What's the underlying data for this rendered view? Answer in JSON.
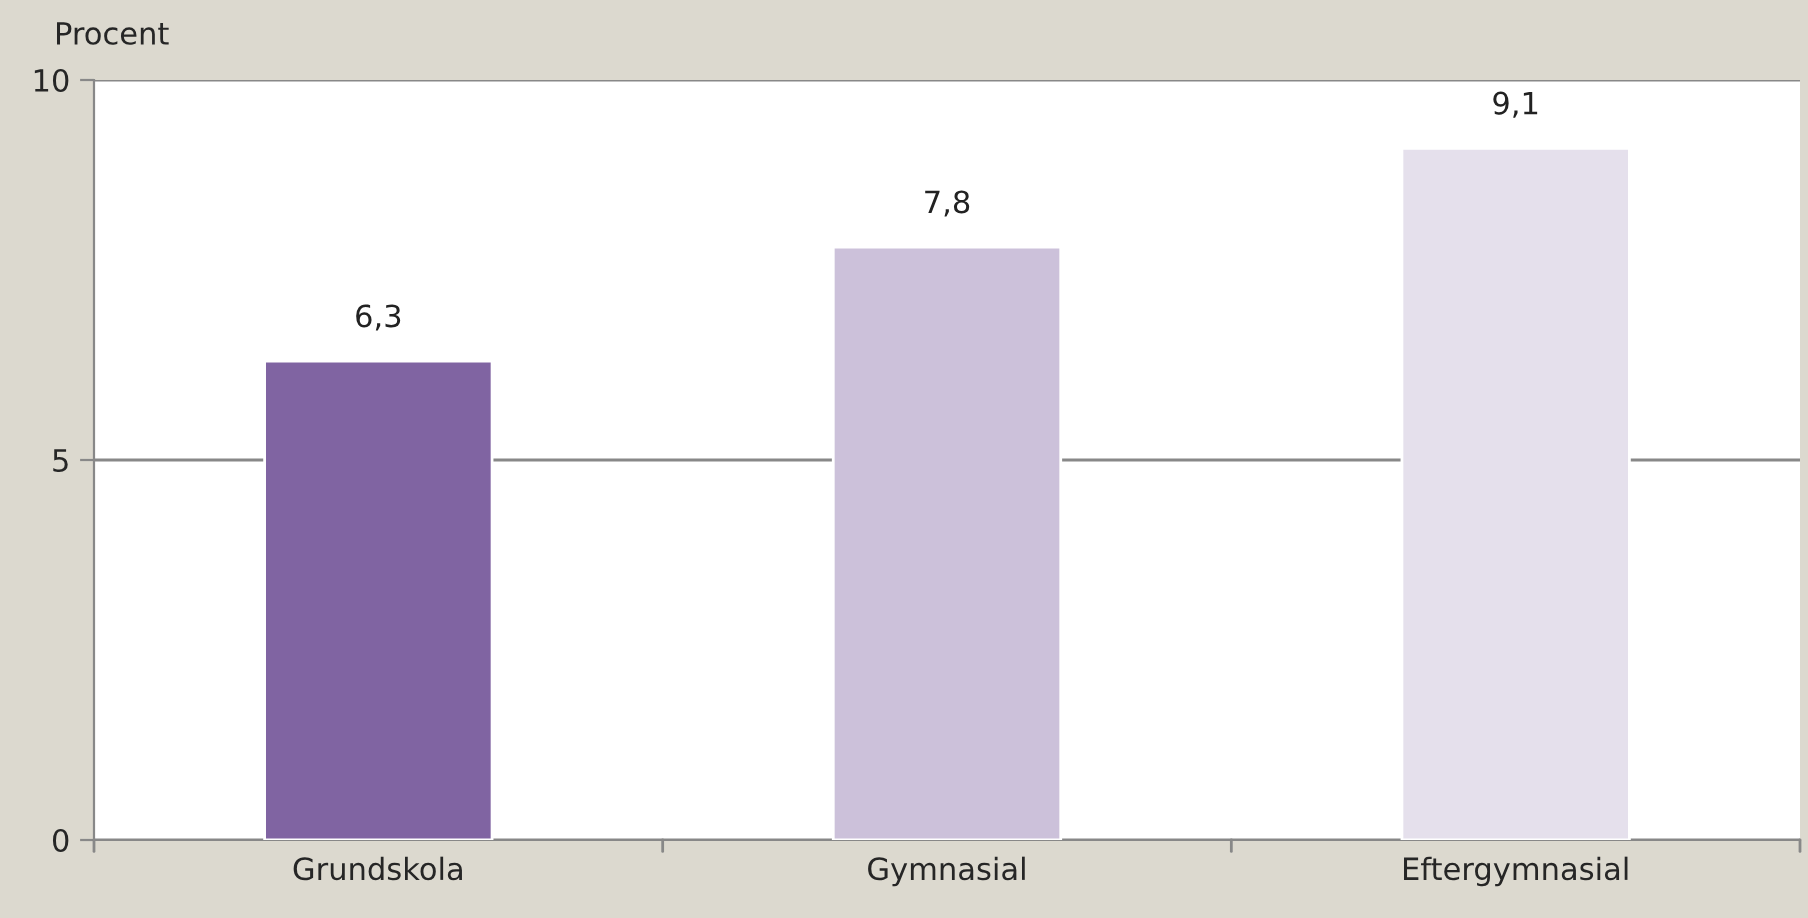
{
  "chart_data": {
    "type": "bar",
    "ylabel": "Procent",
    "categories": [
      "Grundskola",
      "Gymnasial",
      "Eftergymnasial"
    ],
    "values": [
      6.3,
      7.8,
      9.1
    ],
    "colors": [
      "#8064a2",
      "#ccc1da",
      "#e5e0ec"
    ],
    "value_labels": [
      "6,3",
      "7,8",
      "9,1"
    ],
    "ylim": [
      0,
      10
    ],
    "yticks": [
      0,
      5,
      10
    ],
    "grid": "y"
  }
}
